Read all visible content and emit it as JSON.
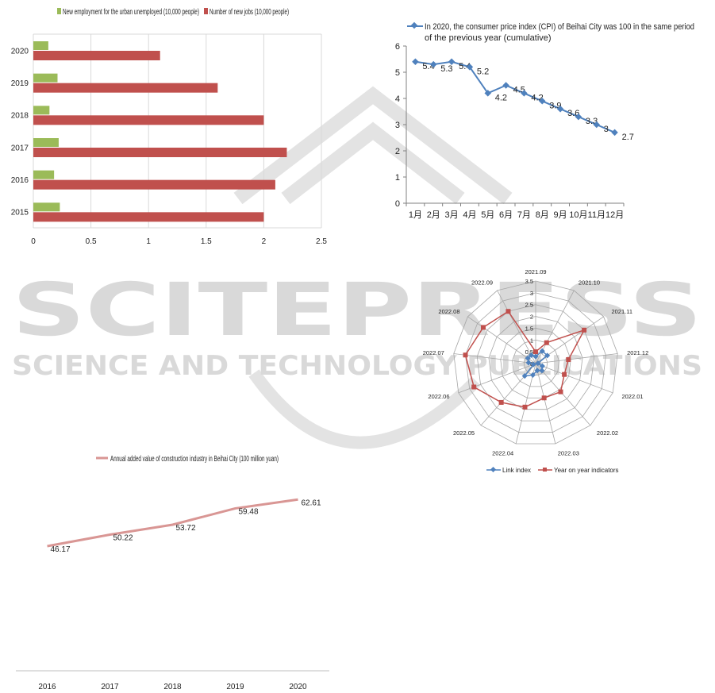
{
  "watermark": {
    "line1": "SCITEPRESS",
    "line2": "SCIENCE AND TECHNOLOGY PUBLICATIONS"
  },
  "chart_data": [
    {
      "type": "bar",
      "orientation": "horizontal",
      "categories": [
        "2020",
        "2019",
        "2018",
        "2017",
        "2016",
        "2015"
      ],
      "series": [
        {
          "name": "New employment for the urban unemployed (10,000 people)",
          "color": "#9bbb59",
          "values": [
            0.13,
            0.21,
            0.14,
            0.22,
            0.18,
            0.23
          ]
        },
        {
          "name": "Number of new jobs (10,000 people)",
          "color": "#c0504d",
          "values": [
            1.1,
            1.6,
            2.0,
            2.2,
            2.1,
            2.0
          ]
        }
      ],
      "xlim": [
        0,
        2.5
      ],
      "xticks": [
        "0",
        "0.5",
        "1",
        "1.5",
        "2",
        "2.5"
      ],
      "grid": true,
      "legend": "top"
    },
    {
      "type": "line",
      "categories": [
        "1月",
        "2月",
        "3月",
        "4月",
        "5月",
        "6月",
        "7月",
        "8月",
        "9月",
        "10月",
        "11月",
        "12月"
      ],
      "series": [
        {
          "name": "In 2020, the consumer price index (CPI) of Beihai City was 100 in the same period of the previous year (cumulative)",
          "color": "#4f81bd",
          "values": [
            5.4,
            5.3,
            5.4,
            5.2,
            4.2,
            4.5,
            4.2,
            3.9,
            3.6,
            3.3,
            3.0,
            2.7
          ]
        }
      ],
      "data_labels": [
        "5.4",
        "5.3",
        "5.4",
        "5.2",
        "4.2",
        "4.5",
        "4.2",
        "3.9",
        "3.6",
        "3.3",
        "3",
        "2.7"
      ],
      "ylim": [
        0,
        6
      ],
      "yticks": [
        "0",
        "1",
        "2",
        "3",
        "4",
        "5",
        "6"
      ],
      "legend": "top"
    },
    {
      "type": "radar",
      "categories": [
        "2021.09",
        "2021.10",
        "2021.11",
        "2021.12",
        "2022.01",
        "2022.02",
        "2022.03",
        "2022.04",
        "2022.05",
        "2022.06",
        "2022.07",
        "2022.08",
        "2022.09"
      ],
      "series": [
        {
          "name": "Link index",
          "color": "#4f81bd",
          "values": [
            0.3,
            0.6,
            0.6,
            0.1,
            0.3,
            0.4,
            0.3,
            0.5,
            0.7,
            0.1,
            0.3,
            0.4,
            0.4
          ]
        },
        {
          "name": "Year on year indicators",
          "color": "#c0504d",
          "values": [
            0.5,
            1.0,
            2.5,
            1.4,
            1.3,
            1.6,
            1.5,
            1.9,
            2.2,
            2.8,
            3.0,
            2.7,
            2.5
          ]
        }
      ],
      "rlim": [
        0,
        3.5
      ],
      "rticks": [
        "0",
        "0.5",
        "1",
        "1.5",
        "2",
        "2.5",
        "3",
        "3.5"
      ],
      "legend": "bottom"
    },
    {
      "type": "line",
      "categories": [
        "2016",
        "2017",
        "2018",
        "2019",
        "2020"
      ],
      "series": [
        {
          "name": "Annual added value of construction industry in Beihai City (100 million yuan)",
          "color": "#d99694",
          "values": [
            46.17,
            50.22,
            53.72,
            59.48,
            62.61
          ]
        }
      ],
      "data_labels": [
        "46.17",
        "50.22",
        "53.72",
        "59.48",
        "62.61"
      ],
      "legend": "top"
    }
  ]
}
